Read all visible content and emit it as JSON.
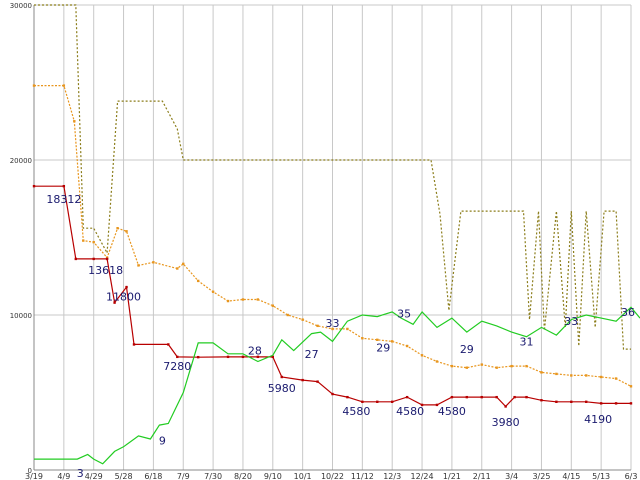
{
  "chart_data": {
    "type": "line",
    "title": "",
    "xlabel": "",
    "ylabel": "",
    "ylim": [
      0,
      30000
    ],
    "grid": true,
    "y_ticks": [
      0,
      10000,
      20000,
      30000
    ],
    "x_tick_labels": [
      "3/19",
      "4/9",
      "4/29",
      "5/28",
      "6/18",
      "7/9",
      "7/30",
      "8/20",
      "9/10",
      "10/1",
      "10/22",
      "11/12",
      "12/3",
      "12/24",
      "1/21",
      "2/11",
      "3/4",
      "3/25",
      "4/15",
      "5/13",
      "6/3"
    ],
    "series": [
      {
        "name": "",
        "style": "dotted-olive",
        "color": "#8b7d1a",
        "values": [
          [
            0,
            30000
          ],
          [
            1.4,
            30000
          ],
          [
            1.65,
            15600
          ],
          [
            2.0,
            15600
          ],
          [
            2.45,
            14000
          ],
          [
            2.8,
            23800
          ],
          [
            3.5,
            23800
          ],
          [
            4.3,
            23800
          ],
          [
            4.8,
            22000
          ],
          [
            5.0,
            20000
          ],
          [
            6.5,
            20000
          ],
          [
            9.0,
            20000
          ],
          [
            12.0,
            20000
          ],
          [
            13.3,
            20000
          ],
          [
            13.6,
            16500
          ],
          [
            13.9,
            10300
          ],
          [
            14.3,
            16700
          ],
          [
            15.0,
            16700
          ],
          [
            16.0,
            16700
          ],
          [
            16.4,
            16700
          ],
          [
            16.6,
            9700
          ],
          [
            16.9,
            16700
          ],
          [
            17.1,
            9000
          ],
          [
            17.5,
            16700
          ],
          [
            17.8,
            9200
          ],
          [
            18.0,
            16700
          ],
          [
            18.25,
            8000
          ],
          [
            18.5,
            16700
          ],
          [
            18.8,
            9200
          ],
          [
            19.1,
            16700
          ],
          [
            19.5,
            16700
          ],
          [
            19.75,
            7800
          ],
          [
            20.0,
            7800
          ]
        ]
      },
      {
        "name": "",
        "style": "dotted-orange",
        "color": "#e8961e",
        "values": [
          [
            0,
            24800
          ],
          [
            1.0,
            24800
          ],
          [
            1.35,
            22500
          ],
          [
            1.65,
            14800
          ],
          [
            2.0,
            14700
          ],
          [
            2.45,
            13700
          ],
          [
            2.8,
            15600
          ],
          [
            3.1,
            15400
          ],
          [
            3.5,
            13200
          ],
          [
            4.0,
            13400
          ],
          [
            4.8,
            13000
          ],
          [
            5.0,
            13300
          ],
          [
            5.5,
            12200
          ],
          [
            6.0,
            11500
          ],
          [
            6.5,
            10900
          ],
          [
            7.0,
            11000
          ],
          [
            7.5,
            11000
          ],
          [
            8.0,
            10600
          ],
          [
            8.5,
            10000
          ],
          [
            9.0,
            9700
          ],
          [
            9.5,
            9300
          ],
          [
            10.0,
            9100
          ],
          [
            10.5,
            9100
          ],
          [
            11.0,
            8500
          ],
          [
            11.5,
            8400
          ],
          [
            12.0,
            8300
          ],
          [
            12.5,
            8000
          ],
          [
            13.0,
            7400
          ],
          [
            13.5,
            7000
          ],
          [
            14.0,
            6700
          ],
          [
            14.5,
            6600
          ],
          [
            15.0,
            6800
          ],
          [
            15.5,
            6600
          ],
          [
            16.0,
            6700
          ],
          [
            16.5,
            6700
          ],
          [
            17.0,
            6300
          ],
          [
            17.5,
            6200
          ],
          [
            18.0,
            6100
          ],
          [
            18.5,
            6100
          ],
          [
            19.0,
            6000
          ],
          [
            19.5,
            5900
          ],
          [
            20.0,
            5400
          ]
        ]
      },
      {
        "name": "",
        "style": "solid-red",
        "color": "#b80000",
        "values": [
          [
            0,
            18312
          ],
          [
            1.0,
            18312
          ],
          [
            1.4,
            13618
          ],
          [
            2.0,
            13618
          ],
          [
            2.45,
            13618
          ],
          [
            2.7,
            10800
          ],
          [
            3.1,
            11800
          ],
          [
            3.35,
            8100
          ],
          [
            4.5,
            8100
          ],
          [
            4.8,
            7300
          ],
          [
            5.5,
            7280
          ],
          [
            6.5,
            7300
          ],
          [
            7.0,
            7300
          ],
          [
            7.5,
            7300
          ],
          [
            8.0,
            7300
          ],
          [
            8.3,
            6000
          ],
          [
            9.0,
            5800
          ],
          [
            9.5,
            5700
          ],
          [
            10.0,
            4900
          ],
          [
            10.5,
            4700
          ],
          [
            11.0,
            4400
          ],
          [
            11.5,
            4400
          ],
          [
            12.0,
            4400
          ],
          [
            12.5,
            4700
          ],
          [
            13.0,
            4200
          ],
          [
            13.5,
            4200
          ],
          [
            14.0,
            4700
          ],
          [
            14.5,
            4700
          ],
          [
            15.0,
            4700
          ],
          [
            15.5,
            4700
          ],
          [
            15.8,
            4100
          ],
          [
            16.1,
            4700
          ],
          [
            16.5,
            4700
          ],
          [
            17.0,
            4500
          ],
          [
            17.5,
            4400
          ],
          [
            18.0,
            4400
          ],
          [
            18.5,
            4400
          ],
          [
            19.0,
            4300
          ],
          [
            19.5,
            4300
          ],
          [
            20.0,
            4300
          ]
        ]
      },
      {
        "name": "",
        "style": "solid-green",
        "color": "#22cc22",
        "values": [
          [
            0,
            700
          ],
          [
            1.0,
            700
          ],
          [
            1.45,
            700
          ],
          [
            1.8,
            1000
          ],
          [
            2.0,
            700
          ],
          [
            2.3,
            400
          ],
          [
            2.7,
            1200
          ],
          [
            3.0,
            1500
          ],
          [
            3.5,
            2200
          ],
          [
            3.9,
            2000
          ],
          [
            4.2,
            2900
          ],
          [
            4.5,
            3000
          ],
          [
            5.0,
            5000
          ],
          [
            5.5,
            8200
          ],
          [
            6.0,
            8200
          ],
          [
            6.5,
            7500
          ],
          [
            7.0,
            7500
          ],
          [
            7.5,
            7000
          ],
          [
            8.0,
            7400
          ],
          [
            8.3,
            8400
          ],
          [
            8.7,
            7700
          ],
          [
            9.3,
            8800
          ],
          [
            9.6,
            8900
          ],
          [
            10.0,
            8300
          ],
          [
            10.5,
            9600
          ],
          [
            11.0,
            10000
          ],
          [
            11.5,
            9900
          ],
          [
            12.0,
            10200
          ],
          [
            12.3,
            9800
          ],
          [
            12.7,
            9400
          ],
          [
            13.0,
            10200
          ],
          [
            13.5,
            9200
          ],
          [
            14.0,
            9800
          ],
          [
            14.5,
            8900
          ],
          [
            15.0,
            9600
          ],
          [
            15.5,
            9300
          ],
          [
            16.0,
            8900
          ],
          [
            16.5,
            8600
          ],
          [
            17.0,
            9200
          ],
          [
            17.5,
            8700
          ],
          [
            18.0,
            9700
          ],
          [
            18.5,
            10000
          ],
          [
            19.0,
            9800
          ],
          [
            19.5,
            9600
          ],
          [
            20.0,
            10500
          ],
          [
            20.3,
            9800
          ]
        ]
      }
    ],
    "annotations": [
      {
        "text": "18312",
        "x": 1.0,
        "y": 17500
      },
      {
        "text": "13618",
        "x": 2.4,
        "y": 12900
      },
      {
        "text": "11800",
        "x": 3.0,
        "y": 11200
      },
      {
        "text": "7280",
        "x": 4.8,
        "y": 6700
      },
      {
        "text": "5980",
        "x": 8.3,
        "y": 5300
      },
      {
        "text": "4580",
        "x": 10.8,
        "y": 3800
      },
      {
        "text": "4580",
        "x": 12.6,
        "y": 3800
      },
      {
        "text": "4580",
        "x": 14.0,
        "y": 3800
      },
      {
        "text": "3980",
        "x": 15.8,
        "y": 3100
      },
      {
        "text": "4190",
        "x": 18.9,
        "y": 3300
      },
      {
        "text": "3",
        "x": 1.55,
        "y": -200
      },
      {
        "text": "9",
        "x": 4.3,
        "y": 1900
      },
      {
        "text": "28",
        "x": 7.4,
        "y": 7700
      },
      {
        "text": "27",
        "x": 9.3,
        "y": 7500
      },
      {
        "text": "33",
        "x": 10.0,
        "y": 9500
      },
      {
        "text": "29",
        "x": 11.7,
        "y": 7900
      },
      {
        "text": "35",
        "x": 12.4,
        "y": 10100
      },
      {
        "text": "29",
        "x": 14.5,
        "y": 7800
      },
      {
        "text": "31",
        "x": 16.5,
        "y": 8300
      },
      {
        "text": "33",
        "x": 18.0,
        "y": 9600
      },
      {
        "text": "36",
        "x": 19.9,
        "y": 10200
      }
    ]
  }
}
